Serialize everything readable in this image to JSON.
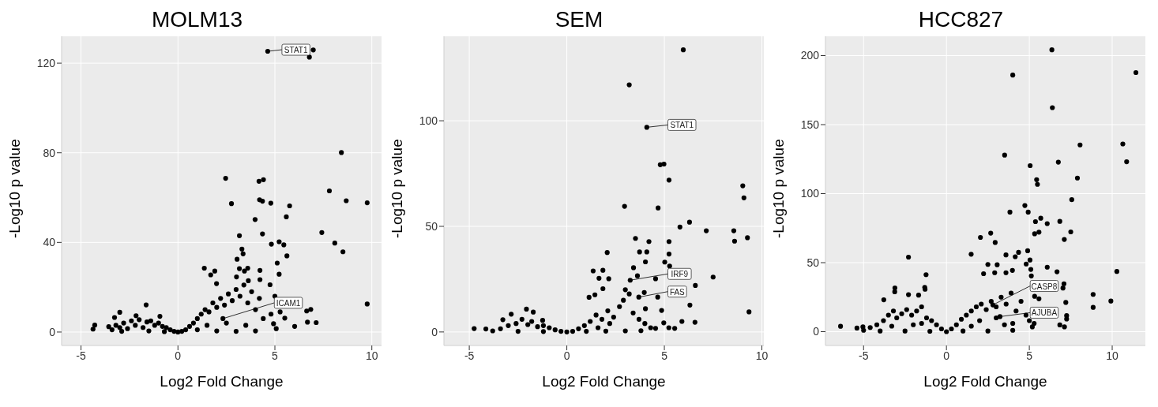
{
  "chart_data": [
    {
      "type": "scatter",
      "title": "MOLM13",
      "xlabel": "Log2 Fold Change",
      "ylabel": "-Log10 p value",
      "xlim": [
        -6,
        10.5
      ],
      "ylim": [
        -6,
        132
      ],
      "xticks": [
        -5,
        0,
        5,
        10
      ],
      "yticks": [
        0,
        40,
        80,
        120
      ],
      "grid": true,
      "marker": "circle",
      "color": "#000000",
      "x": [
        4.63,
        6.98,
        6.78,
        8.43,
        2.46,
        4.18,
        4.41,
        7.81,
        4.21,
        4.36,
        4.79,
        8.68,
        9.76,
        2.76,
        5.76,
        5.59,
        3.98,
        3.17,
        4.36,
        7.42,
        5.22,
        4.82,
        5.46,
        8.09,
        8.51,
        5.62,
        3.3,
        3.36,
        3.05,
        5.12,
        1.36,
        1.9,
        1.69,
        3.17,
        3.6,
        3.43,
        4.23,
        5.22,
        3.02,
        1.99,
        3.63,
        4.23,
        4.75,
        9.76,
        6.85,
        6.64,
        5.27,
        5.51,
        6.68,
        7.13,
        6.02,
        4.93,
        5.07,
        -1.64,
        -3.0,
        -3.27,
        -0.93,
        -2.16,
        -4.29,
        -4.38,
        -3.57,
        -3.4,
        -3.2,
        -3.0,
        -2.8,
        -2.6,
        -2.4,
        -2.2,
        -2.0,
        -1.8,
        -1.6,
        -1.4,
        -1.2,
        -1.0,
        -0.8,
        -0.6,
        -0.4,
        -0.2,
        0,
        -2.9,
        -1.5,
        -0.7,
        0.2,
        0.4,
        0.6,
        0.8,
        1.0,
        1.2,
        1.4,
        1.6,
        1.8,
        2.0,
        2.2,
        2.4,
        2.6,
        2.8,
        3.0,
        3.2,
        3.4,
        3.6,
        3.8,
        4.0,
        4.2,
        1.0,
        2.0,
        3.0,
        4.0,
        1.5,
        2.5,
        3.5,
        4.4,
        4.8,
        5.0,
        2.32
      ],
      "values": [
        125.3,
        125.9,
        122.7,
        80.1,
        68.6,
        67.3,
        68.0,
        63.0,
        59.0,
        58.4,
        57.5,
        58.6,
        57.7,
        57.3,
        56.3,
        51.4,
        50.2,
        43.0,
        43.8,
        44.4,
        40.3,
        39.2,
        38.9,
        39.7,
        35.8,
        34.0,
        37.0,
        34.9,
        32.5,
        30.8,
        28.5,
        27.2,
        25.5,
        28.3,
        28.5,
        27.2,
        27.5,
        25.8,
        24.6,
        21.6,
        22.9,
        23.4,
        21.1,
        12.5,
        10.1,
        9.4,
        9.0,
        6.2,
        4.4,
        4.2,
        2.5,
        3.7,
        1.5,
        12.1,
        8.8,
        6.5,
        7.0,
        7.3,
        3.1,
        1.3,
        2.4,
        1,
        3,
        2,
        4,
        1.5,
        5,
        3,
        5.5,
        2,
        4.5,
        5,
        3,
        4,
        2.5,
        2,
        1,
        0.3,
        0,
        0.3,
        0.5,
        0.2,
        0.3,
        1,
        2.5,
        4,
        6,
        8,
        10,
        9,
        13,
        11,
        15,
        12,
        17,
        14,
        19,
        16,
        21,
        13,
        18,
        10,
        15,
        1,
        0.5,
        0.3,
        0.5,
        3,
        4,
        3,
        6,
        8,
        16,
        6
      ],
      "annotations": [
        {
          "text": "STAT1",
          "x": 4.63,
          "y": 125.3
        },
        {
          "text": "ICAM1",
          "x": 2.32,
          "y": 6
        }
      ]
    },
    {
      "type": "scatter",
      "title": "SEM",
      "xlabel": "Log2 Fold Change",
      "ylabel": "-Log10 p value",
      "xlim": [
        -6.3,
        10.1
      ],
      "ylim": [
        -6.4,
        140
      ],
      "xticks": [
        -5,
        0,
        5,
        10
      ],
      "yticks": [
        0,
        50,
        100
      ],
      "grid": true,
      "marker": "circle",
      "color": "#000000",
      "x": [
        5.97,
        3.2,
        4.1,
        4.79,
        4.98,
        5.24,
        9.02,
        9.08,
        2.96,
        4.68,
        6.29,
        5.8,
        7.15,
        8.56,
        8.6,
        9.26,
        3.52,
        4.21,
        5.24,
        3.73,
        4.1,
        5.24,
        2.07,
        4.03,
        5.02,
        5.27,
        3.42,
        1.35,
        1.85,
        7.5,
        1.65,
        2.15,
        3.62,
        4.55,
        3.25,
        6.59,
        1.85,
        3.97,
        3.69,
        4.66,
        1.44,
        1.14,
        6.31,
        9.34,
        4.03,
        4.86,
        6.57,
        5.9,
        4.55,
        4.97,
        5.23,
        5.53,
        -4.75,
        -4.15,
        -2.07,
        -1.72,
        -2.85,
        -3.28,
        -1.24,
        -3.8,
        -3.4,
        -3.0,
        -2.6,
        -2.3,
        -2.0,
        -1.8,
        -1.5,
        -1.2,
        -0.9,
        -0.6,
        -0.3,
        0,
        -2.5,
        -1.2,
        0.3,
        0.6,
        0.9,
        1.2,
        1.5,
        1.8,
        2.1,
        2.4,
        2.7,
        3.0,
        3.2,
        2.9,
        3.4,
        3.7,
        4.0,
        4.3,
        1.0,
        2.0,
        3.0,
        3.8,
        2.2,
        1.6
      ],
      "values": [
        133.6,
        117.0,
        96.9,
        79.2,
        79.5,
        71.9,
        69.2,
        63.5,
        59.5,
        58.7,
        52.0,
        49.7,
        47.9,
        47.9,
        43.0,
        44.6,
        44.3,
        42.8,
        42.8,
        37.9,
        37.9,
        36.9,
        37.6,
        33.2,
        33.1,
        31.2,
        30.4,
        28.9,
        29.2,
        26.0,
        25.4,
        25.2,
        26.6,
        25.2,
        24.5,
        22.0,
        20.5,
        18.7,
        16.5,
        16.5,
        17.6,
        16.4,
        12.7,
        9.5,
        11.0,
        10.2,
        4.6,
        5.0,
        1.7,
        4.3,
        2.0,
        1.7,
        1.6,
        1.4,
        10.8,
        9.4,
        8.4,
        5.8,
        5.5,
        0.5,
        1.5,
        3,
        4,
        6,
        3.5,
        5,
        2.5,
        3,
        2,
        1,
        0.3,
        0,
        0.3,
        0.2,
        0.3,
        1.5,
        3,
        5,
        8,
        6,
        10,
        7,
        12,
        20,
        18,
        15,
        9,
        6,
        4,
        2,
        0.3,
        0.4,
        0.5,
        0.6,
        4,
        2
      ],
      "annotations": [
        {
          "text": "STAT1",
          "x": 4.1,
          "y": 96.9
        },
        {
          "text": "IRF9",
          "x": 3.25,
          "y": 24.5
        },
        {
          "text": "FAS",
          "x": 3.69,
          "y": 16.5
        }
      ]
    },
    {
      "type": "scatter",
      "title": "HCC827",
      "xlabel": "Log2 Fold Change",
      "ylabel": "-Log10 p value",
      "xlim": [
        -7.3,
        12
      ],
      "ylim": [
        -10,
        214
      ],
      "xticks": [
        -5,
        0,
        5,
        10
      ],
      "yticks": [
        0,
        50,
        100,
        150,
        200
      ],
      "grid": true,
      "marker": "circle",
      "color": "#000000",
      "x": [
        6.36,
        4.0,
        11.43,
        6.39,
        8.06,
        10.64,
        10.87,
        3.51,
        6.75,
        5.05,
        5.44,
        5.49,
        7.9,
        7.56,
        4.73,
        4.93,
        3.83,
        5.69,
        5.37,
        6.84,
        6.08,
        2.67,
        5.32,
        5.58,
        7.5,
        2.05,
        2.94,
        7.11,
        4.9,
        4.35,
        1.49,
        3.59,
        4.15,
        -2.29,
        5.04,
        2.5,
        3.06,
        4.81,
        10.28,
        6.08,
        5.09,
        3.98,
        2.24,
        2.91,
        3.59,
        6.67,
        -1.23,
        5.12,
        7.09,
        7.03,
        -1.31,
        -1.29,
        -3.11,
        -3.12,
        8.85,
        8.85,
        9.92,
        5.32,
        5.58,
        7.2,
        2.8,
        3.23,
        -2.29,
        -1.68,
        -3.78,
        -6.39,
        -5.4,
        -5.04,
        7.25,
        7.25,
        6.84,
        7.12,
        5.29,
        5.18,
        -5.0,
        -4.6,
        -4.2,
        -3.8,
        -3.5,
        -3.2,
        -3.0,
        -2.7,
        -2.4,
        -2.1,
        -1.8,
        -1.5,
        -1.2,
        -0.9,
        -0.6,
        -0.3,
        0,
        -4.0,
        -2.5,
        -1.0,
        -2.0,
        -3.3,
        -1.5,
        0.3,
        0.6,
        0.9,
        1.2,
        1.5,
        1.8,
        2.1,
        2.4,
        2.7,
        3.0,
        3.3,
        3.6,
        3.9,
        4.2,
        4.5,
        4.8,
        5.0,
        1.0,
        2.5,
        4.0,
        2.0,
        3.0,
        4.0,
        1.5,
        3.5
      ],
      "values": [
        204.2,
        185.9,
        187.7,
        162.3,
        135.3,
        136.0,
        123.1,
        127.9,
        122.8,
        120.3,
        110.1,
        106.7,
        111.3,
        95.6,
        91.4,
        86.6,
        86.6,
        82.2,
        79.7,
        79.9,
        78.3,
        71.4,
        70.9,
        72.1,
        72.3,
        68.3,
        64.6,
        66.8,
        58.6,
        57.5,
        56.1,
        55.6,
        54.3,
        54.0,
        51.9,
        48.7,
        48.5,
        49.0,
        43.6,
        46.7,
        45.1,
        44.4,
        42.0,
        42.7,
        42.7,
        43.4,
        41.3,
        40.4,
        34.7,
        31.6,
        32.1,
        30.7,
        31.7,
        28.9,
        27.0,
        17.6,
        22.2,
        25.6,
        23.8,
        21.2,
        19.4,
        10.9,
        26.8,
        26.5,
        23.1,
        3.9,
        2.6,
        3.5,
        11.6,
        9.2,
        4.9,
        3.5,
        6.0,
        3.5,
        1,
        3,
        5,
        8,
        12,
        15,
        10,
        13,
        16,
        12,
        15,
        18,
        10,
        8,
        5,
        2,
        0,
        0.5,
        0.5,
        0.3,
        5,
        4,
        6,
        2,
        5,
        9,
        12,
        15,
        18,
        20,
        16,
        22,
        18,
        25,
        20,
        28,
        15,
        22,
        12,
        8,
        0.5,
        0.5,
        1,
        8,
        10,
        6,
        4,
        5
      ],
      "annotations": [
        {
          "text": "CASP8",
          "x": 2.8,
          "y": 19.4
        },
        {
          "text": "AJUBA",
          "x": 3.23,
          "y": 10.9
        }
      ]
    }
  ]
}
